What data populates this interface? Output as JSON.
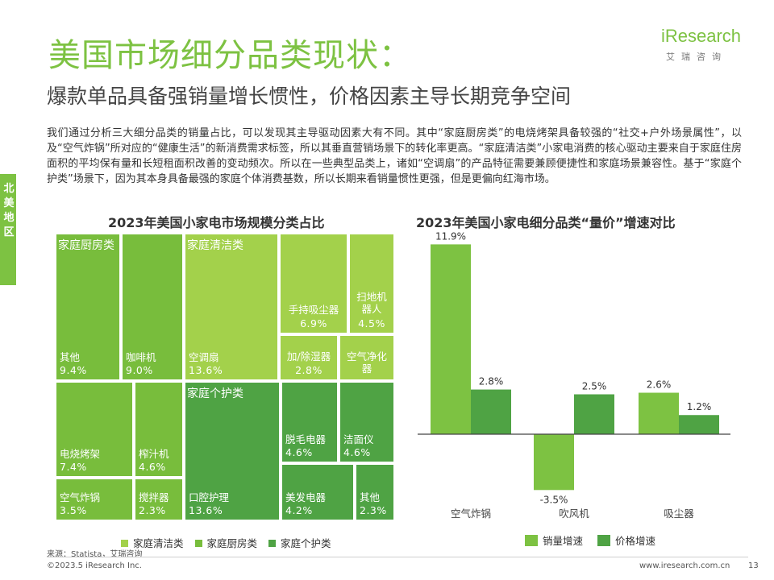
{
  "header": {
    "title": "美国市场细分品类现状：",
    "subtitle": "爆款单品具备强销量增长惯性，价格因素主导长期竞争空间"
  },
  "logo": {
    "main": "iResearch",
    "sub": "艾瑞咨询"
  },
  "side_tab": {
    "label": "北美地区"
  },
  "body_text": "我们通过分析三大细分品类的销量占比，可以发现其主导驱动因素大有不同。其中“家庭厨房类”的电烧烤架具备较强的“社交+户外场景属性”，以及“空气炸锅”所对应的“健康生活”的新消费需求标签，所以其垂直营销场景下的转化率更高。“家庭清洁类”小家电消费的核心驱动主要来自于家庭住房面积的平均保有量和长短租面积改善的变动频次。所以在一些典型品类上，诸如“空调扇”的产品特征需要兼顾便捷性和家庭场景兼容性。基于“家庭个护类”场景下，因为其本身具备最强的家庭个体消费基数，所以长期来看销量惯性更强，但是更偏向红海市场。",
  "colors": {
    "accent": "#7dc242",
    "clean": "#a3d14b",
    "kitchen": "#78bd3c",
    "care": "#4fa344",
    "sales": "#7dc242",
    "price": "#4fa344"
  },
  "chart_data": [
    {
      "type": "treemap",
      "title": "2023年美国小家电市场规模分类占比",
      "groups": [
        {
          "name": "家庭厨房类",
          "items": [
            {
              "name": "其他",
              "value": "9.4%"
            },
            {
              "name": "咖啡机",
              "value": "9.0%"
            },
            {
              "name": "电烧烤架",
              "value": "7.4%"
            },
            {
              "name": "榨汁机",
              "value": "4.6%"
            },
            {
              "name": "空气炸锅",
              "value": "3.5%"
            },
            {
              "name": "搅拌器",
              "value": "2.3%"
            }
          ]
        },
        {
          "name": "家庭清洁类",
          "items": [
            {
              "name": "空调扇",
              "value": "13.6%"
            },
            {
              "name": "手持吸尘器",
              "value": "6.9%"
            },
            {
              "name": "扫地机器人",
              "value": "4.5%"
            },
            {
              "name": "加/除湿器",
              "value": "2.8%"
            },
            {
              "name": "空气净化器",
              "value": ""
            }
          ]
        },
        {
          "name": "家庭个护类",
          "items": [
            {
              "name": "口腔护理",
              "value": "13.6%"
            },
            {
              "name": "脱毛电器",
              "value": "4.6%"
            },
            {
              "name": "洁面仪",
              "value": "4.6%"
            },
            {
              "name": "美发电器",
              "value": "4.2%"
            },
            {
              "name": "其他",
              "value": "2.3%"
            }
          ]
        }
      ],
      "legend": [
        "家庭清洁类",
        "家庭厨房类",
        "家庭个护类"
      ]
    },
    {
      "type": "bar",
      "title": "2023年美国小家电细分品类“量价”增速对比",
      "categories": [
        "空气炸锅",
        "吹风机",
        "吸尘器"
      ],
      "series": [
        {
          "name": "销量增速",
          "values": [
            11.9,
            -3.5,
            2.6
          ],
          "labels": [
            "11.9%",
            "-3.5%",
            "2.6%"
          ]
        },
        {
          "name": "价格增速",
          "values": [
            2.8,
            2.5,
            1.2
          ],
          "labels": [
            "2.8%",
            "2.5%",
            "1.2%"
          ]
        }
      ],
      "ylim": [
        -4.5,
        12.5
      ]
    }
  ],
  "footer": {
    "source": "来源：Statista，艾瑞咨询",
    "copyright": "©2023.5 iResearch Inc.",
    "url": "www.iresearch.com.cn",
    "page": "13"
  }
}
